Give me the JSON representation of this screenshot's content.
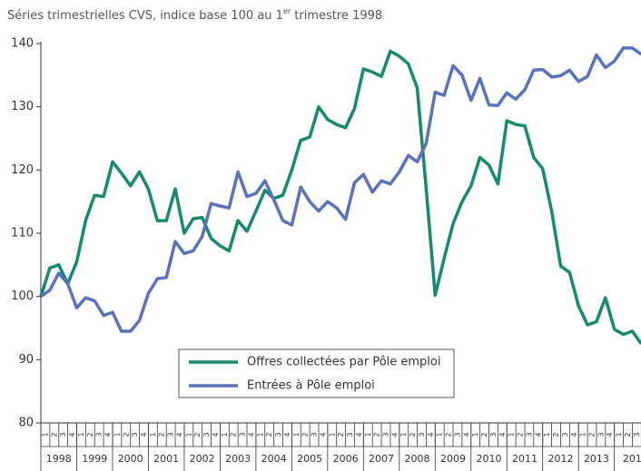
{
  "chart_data": {
    "type": "line",
    "title": [
      "Séries trimestrielles CVS, indice base 100 au 1",
      "er",
      " trimestre 1998"
    ],
    "categories": [
      "1",
      "2",
      "3",
      "4",
      "1",
      "2",
      "3",
      "4",
      "1",
      "2",
      "3",
      "4",
      "1",
      "2",
      "3",
      "4",
      "1",
      "2",
      "3",
      "4",
      "1",
      "2",
      "3",
      "4",
      "1",
      "2",
      "3",
      "4",
      "1",
      "2",
      "3",
      "4",
      "1",
      "2",
      "3",
      "4",
      "1",
      "2",
      "3",
      "4",
      "1",
      "2",
      "3",
      "4",
      "1",
      "2",
      "3",
      "4",
      "1",
      "2",
      "3",
      "4",
      "1",
      "2",
      "3",
      "4",
      "1",
      "2",
      "3",
      "4",
      "1",
      "2",
      "3",
      "4",
      "1",
      "2",
      "3",
      "4"
    ],
    "years": [
      "1998",
      "1999",
      "2000",
      "2001",
      "2002",
      "2003",
      "2004",
      "2005",
      "2006",
      "2007",
      "2008",
      "2009",
      "2010",
      "2011",
      "2012",
      "2013",
      "201"
    ],
    "series": [
      {
        "name": "Offres collectées par Pôle emploi",
        "color": "#16896f",
        "values": [
          100,
          104.5,
          105,
          102,
          105.5,
          112,
          116,
          115.8,
          121.3,
          119.5,
          117.5,
          119.7,
          117,
          112,
          112,
          117,
          110,
          112.3,
          112.5,
          109.2,
          108,
          107.2,
          112,
          110.3,
          113.5,
          116.8,
          115.5,
          116,
          120,
          124.7,
          125.2,
          130,
          128,
          127.2,
          126.7,
          129.7,
          136,
          135.5,
          134.8,
          138.8,
          138,
          136.8,
          133,
          117,
          100.2,
          106,
          111.5,
          115,
          117.5,
          122,
          120.8,
          117.8,
          127.8,
          127.2,
          127,
          122,
          120.2,
          113.5,
          104.8,
          103.8,
          98.5,
          95.5,
          96,
          99.8,
          94.8,
          94,
          94.5,
          92.5
        ]
      },
      {
        "name": "Entrées à Pôle emploi",
        "color": "#5b72b8",
        "values": [
          100,
          101,
          103.7,
          102,
          98.2,
          99.8,
          99.3,
          97,
          97.5,
          94.5,
          94.5,
          96.2,
          100.5,
          102.8,
          103,
          108.7,
          106.8,
          107.2,
          109.5,
          114.7,
          114.3,
          114,
          119.7,
          115.8,
          116.3,
          118.3,
          115.3,
          112,
          111.3,
          117.3,
          115,
          113.5,
          115,
          114,
          112.2,
          118,
          119.3,
          116.5,
          118.3,
          117.8,
          119.7,
          122.3,
          121.3,
          124.2,
          132.3,
          131.8,
          136.5,
          135,
          131,
          134.5,
          130.3,
          130.2,
          132.2,
          131.2,
          132.7,
          135.8,
          135.9,
          134.7,
          134.9,
          135.8,
          134,
          134.8,
          138.2,
          136.2,
          137.2,
          139.3,
          139.3,
          138.3
        ]
      }
    ],
    "ylim": [
      80,
      140
    ],
    "yticks": [
      80,
      90,
      100,
      110,
      120,
      130,
      140
    ]
  }
}
